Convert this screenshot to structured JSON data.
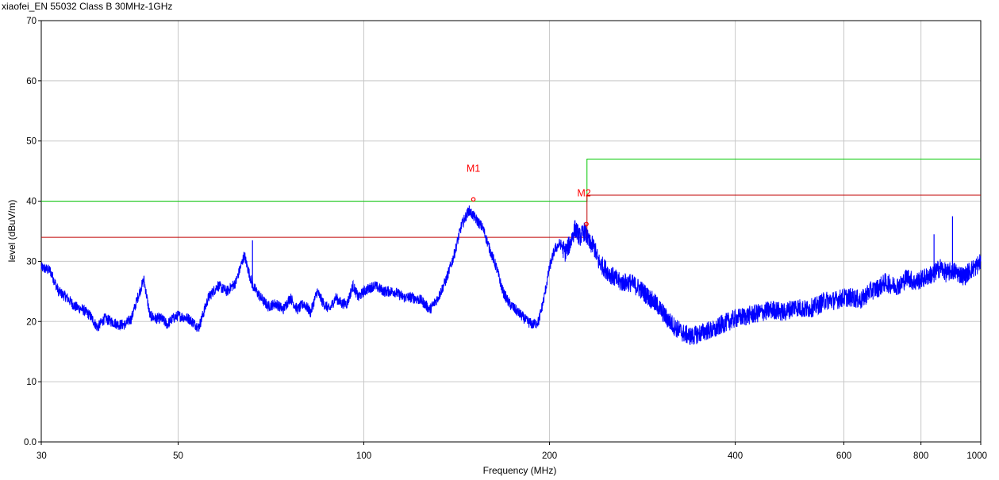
{
  "chart_data": {
    "type": "line",
    "title": "xiaofei_EN 55032 Class B 30MHz-1GHz",
    "xlabel": "Frequency (MHz)",
    "ylabel": "level (dBuV/m)",
    "x_scale": "log",
    "xlim": [
      30,
      1000
    ],
    "ylim": [
      0,
      70
    ],
    "grid": true,
    "x_ticks": [
      30,
      50,
      100,
      200,
      400,
      600,
      800,
      1000
    ],
    "y_ticks": [
      0,
      10,
      20,
      30,
      40,
      50,
      60,
      70
    ],
    "y_tick_labels": [
      "0.0",
      "10",
      "20",
      "30",
      "40",
      "50",
      "60",
      "70"
    ],
    "colors": {
      "measurement": "#0000ff",
      "limit": "#00c800",
      "limit_margin": "#c00000",
      "marker": "#ff0000",
      "grid": "#c8c8c8"
    },
    "series": [
      {
        "role": "limit",
        "color": "#00c800",
        "x": [
          30,
          230,
          230,
          1000
        ],
        "y": [
          40,
          40,
          47,
          47
        ]
      },
      {
        "role": "limit-margin",
        "color": "#c00000",
        "x": [
          30,
          230,
          230,
          1000
        ],
        "y": [
          34,
          34,
          41,
          41
        ]
      },
      {
        "role": "measurement",
        "color": "#0000ff",
        "x": [
          30,
          31,
          32,
          33,
          34,
          35,
          36,
          37,
          38,
          39,
          40,
          41,
          42,
          43,
          44,
          45,
          46,
          47,
          48,
          49,
          50,
          52,
          54,
          56,
          58,
          60,
          62,
          64,
          66,
          68,
          70,
          72,
          74,
          76,
          78,
          80,
          82,
          84,
          86,
          88,
          90,
          92,
          94,
          96,
          98,
          100,
          104,
          108,
          112,
          116,
          120,
          124,
          128,
          132,
          136,
          140,
          144,
          148,
          152,
          156,
          160,
          164,
          168,
          172,
          176,
          180,
          184,
          188,
          192,
          196,
          200,
          204,
          208,
          212,
          216,
          220,
          224,
          228,
          232,
          236,
          240,
          245,
          250,
          260,
          270,
          280,
          290,
          300,
          310,
          320,
          330,
          340,
          350,
          360,
          370,
          380,
          390,
          400,
          420,
          440,
          460,
          480,
          500,
          520,
          540,
          560,
          580,
          600,
          620,
          640,
          660,
          680,
          700,
          720,
          740,
          760,
          780,
          800,
          820,
          840,
          860,
          880,
          900,
          920,
          940,
          960,
          980,
          1000
        ],
        "y": [
          29,
          28.5,
          25,
          24,
          22.5,
          22,
          21,
          19,
          20.5,
          20,
          19.5,
          19.5,
          20.5,
          24,
          27,
          21,
          20.5,
          20.5,
          19.5,
          20.5,
          21,
          20.5,
          19,
          24,
          26,
          25,
          26.5,
          31,
          26,
          24,
          22.5,
          23,
          22,
          24,
          22,
          23,
          21.5,
          25,
          23,
          22,
          24,
          23,
          23,
          26,
          24,
          25,
          26,
          25,
          25,
          24,
          24,
          23.5,
          22,
          24,
          27,
          31,
          36,
          38.5,
          37,
          35.5,
          32,
          29,
          25,
          23,
          22,
          21,
          20,
          19.5,
          20,
          24,
          29,
          32,
          33,
          31.5,
          33,
          35.5,
          34,
          35,
          33,
          32.5,
          30,
          29,
          28,
          26.5,
          26.5,
          25.5,
          24,
          22.5,
          20.5,
          19,
          18,
          17.5,
          18,
          18.5,
          18.5,
          19.5,
          20,
          20.5,
          21,
          21.5,
          22,
          21.5,
          22.5,
          22,
          22.5,
          23.5,
          23.5,
          24,
          24,
          23.5,
          25,
          25.5,
          26.5,
          26,
          26,
          27.5,
          26.5,
          27,
          27.5,
          28,
          29,
          28,
          28.5,
          28,
          27.5,
          28.5,
          29,
          30
        ]
      }
    ],
    "spikes": [
      {
        "x": 66,
        "y": 33.5
      },
      {
        "x": 840,
        "y": 34.5
      },
      {
        "x": 900,
        "y": 37.5
      }
    ],
    "markers": [
      {
        "label": "M1",
        "x": 150.5,
        "y": 40.3
      },
      {
        "label": "M2",
        "x": 229.5,
        "y": 36.2
      }
    ]
  }
}
